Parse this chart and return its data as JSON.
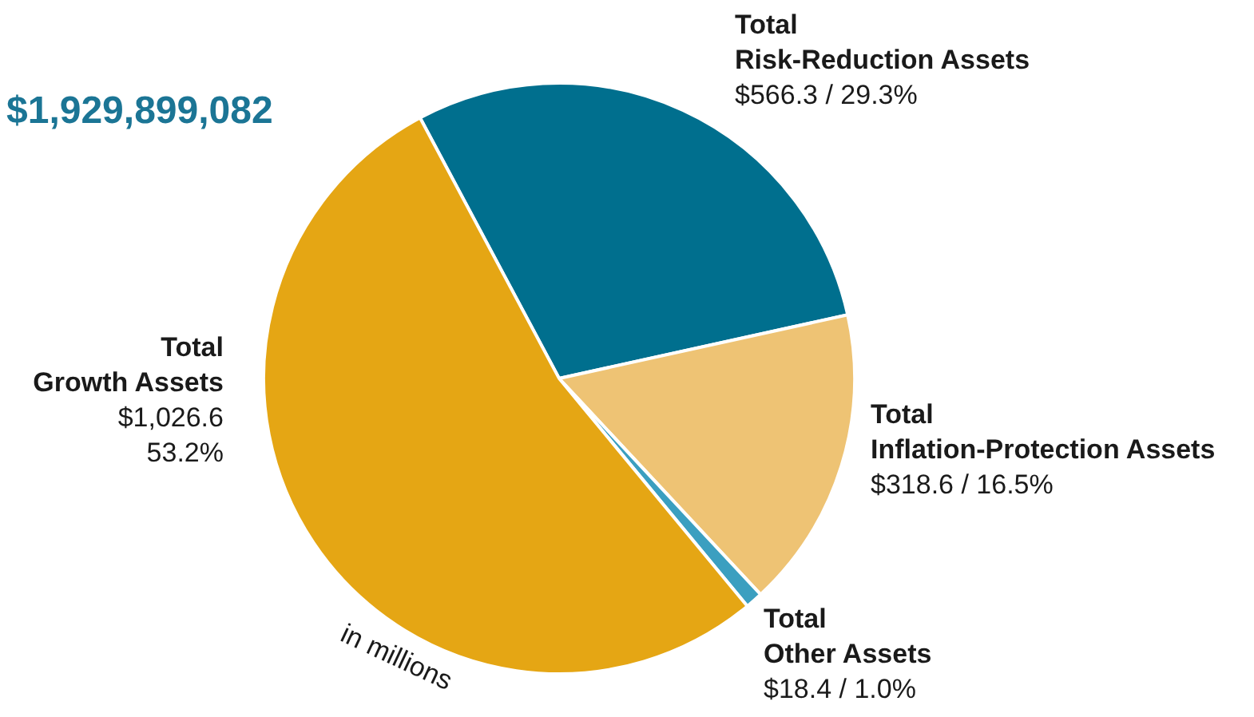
{
  "chart_data": {
    "type": "pie",
    "title": "$1,929,899,082",
    "categories": [
      "Total\nRisk-Reduction Assets",
      "Total\nInflation-Protection Assets",
      "Total\nOther Assets",
      "Total\nGrowth Assets"
    ],
    "values": [
      566.3,
      318.6,
      18.4,
      1026.6
    ],
    "colors": [
      "#006f8e",
      "#eec374",
      "#3b9fc0",
      "#e5a614"
    ],
    "value_labels": [
      "$566.3 / 29.3%",
      "$318.6 / 16.5%",
      "$18.4 / 1.0%",
      "$1,026.6\n53.2%"
    ],
    "annotations": [
      "in millions"
    ]
  }
}
